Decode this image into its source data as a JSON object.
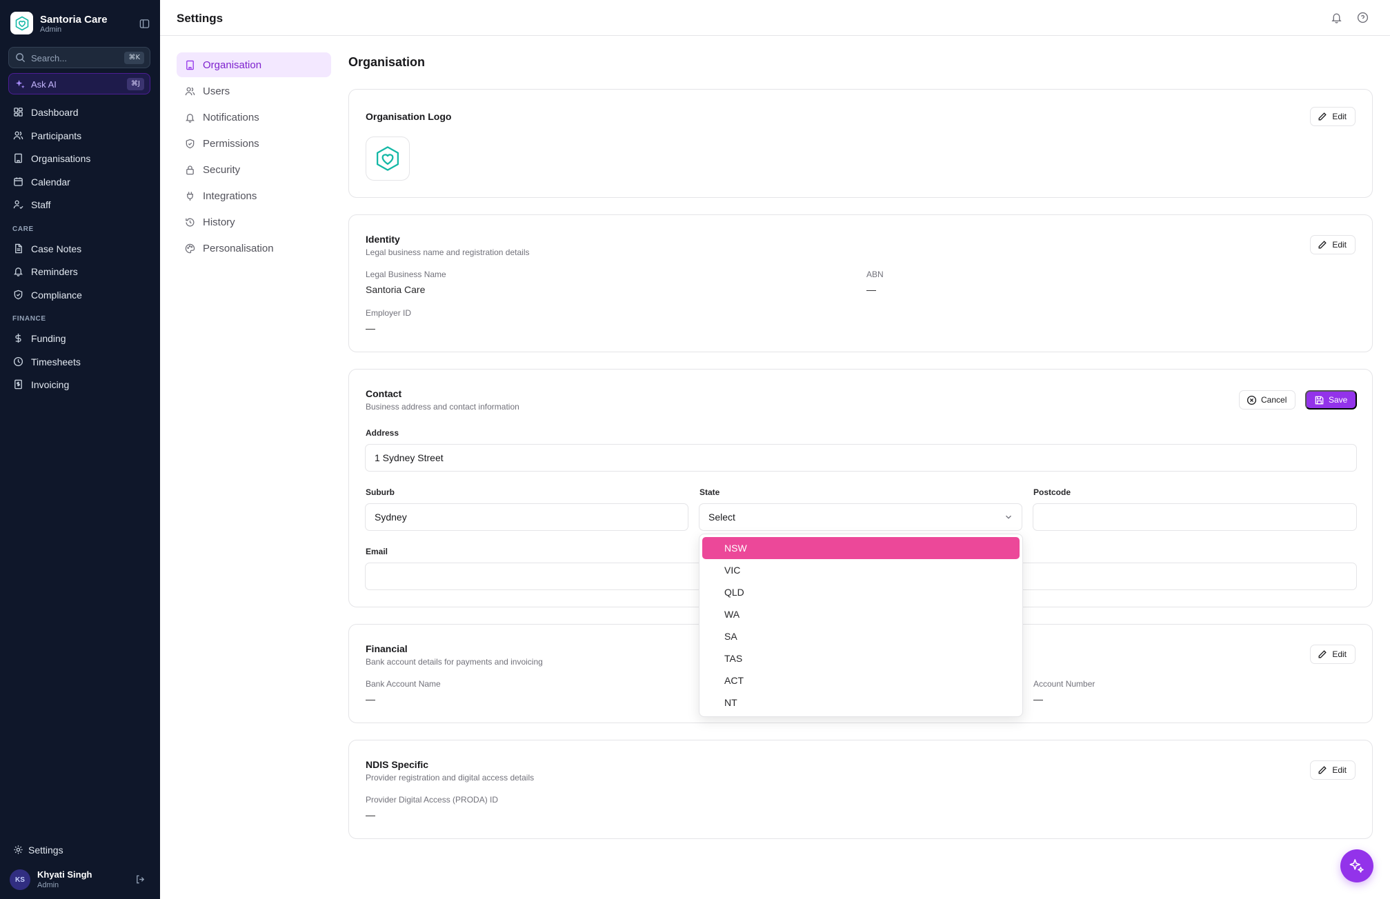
{
  "app": {
    "name": "Santoria Care",
    "role": "Admin",
    "search_placeholder": "Search...",
    "search_shortcut": "⌘K",
    "ask_ai_label": "Ask AI",
    "ask_ai_shortcut": "⌘J"
  },
  "sidebar": {
    "main": [
      {
        "label": "Dashboard",
        "icon": "dashboard-icon"
      },
      {
        "label": "Participants",
        "icon": "users-icon"
      },
      {
        "label": "Organisations",
        "icon": "building-icon"
      },
      {
        "label": "Calendar",
        "icon": "calendar-icon"
      },
      {
        "label": "Staff",
        "icon": "staff-icon"
      }
    ],
    "care_title": "CARE",
    "care": [
      {
        "label": "Case Notes",
        "icon": "notes-icon"
      },
      {
        "label": "Reminders",
        "icon": "bell-icon"
      },
      {
        "label": "Compliance",
        "icon": "shield-icon"
      }
    ],
    "finance_title": "FINANCE",
    "finance": [
      {
        "label": "Funding",
        "icon": "dollar-icon"
      },
      {
        "label": "Timesheets",
        "icon": "clock-icon"
      },
      {
        "label": "Invoicing",
        "icon": "invoice-icon"
      }
    ],
    "settings_label": "Settings",
    "user": {
      "initials": "KS",
      "name": "Khyati Singh",
      "role": "Admin"
    }
  },
  "topbar": {
    "title": "Settings"
  },
  "settings_nav": [
    {
      "label": "Organisation",
      "active": true
    },
    {
      "label": "Users",
      "active": false
    },
    {
      "label": "Notifications",
      "active": false
    },
    {
      "label": "Permissions",
      "active": false
    },
    {
      "label": "Security",
      "active": false
    },
    {
      "label": "Integrations",
      "active": false
    },
    {
      "label": "History",
      "active": false
    },
    {
      "label": "Personalisation",
      "active": false
    }
  ],
  "main": {
    "heading": "Organisation",
    "edit_label": "Edit",
    "logo_card": {
      "title": "Organisation Logo"
    },
    "identity": {
      "title": "Identity",
      "subtitle": "Legal business name and registration details",
      "legal_name_label": "Legal Business Name",
      "legal_name_value": "Santoria Care",
      "abn_label": "ABN",
      "abn_value": "—",
      "employer_id_label": "Employer ID",
      "employer_id_value": "—"
    },
    "contact": {
      "title": "Contact",
      "subtitle": "Business address and contact information",
      "cancel_label": "Cancel",
      "save_label": "Save",
      "address_label": "Address",
      "address_value": "1 Sydney Street",
      "suburb_label": "Suburb",
      "suburb_value": "Sydney",
      "state_label": "State",
      "state_value": "Select",
      "postcode_label": "Postcode",
      "postcode_value": "",
      "email_label": "Email",
      "email_value": ""
    },
    "state_options": [
      "NSW",
      "VIC",
      "QLD",
      "WA",
      "SA",
      "TAS",
      "ACT",
      "NT"
    ],
    "state_highlighted": "NSW",
    "financial": {
      "title": "Financial",
      "subtitle": "Bank account details for payments and invoicing",
      "bank_name_label": "Bank Account Name",
      "bank_name_value": "—",
      "account_number_label": "Account Number",
      "account_number_value": "—"
    },
    "ndis": {
      "title": "NDIS Specific",
      "subtitle": "Provider registration and digital access details",
      "proda_label": "Provider Digital Access (PRODA) ID",
      "proda_value": "—"
    }
  },
  "colors": {
    "sidebar_bg": "#0f172a",
    "accent": "#9333ea",
    "highlight": "#ec4899",
    "brand_teal": "#14b8a6"
  }
}
